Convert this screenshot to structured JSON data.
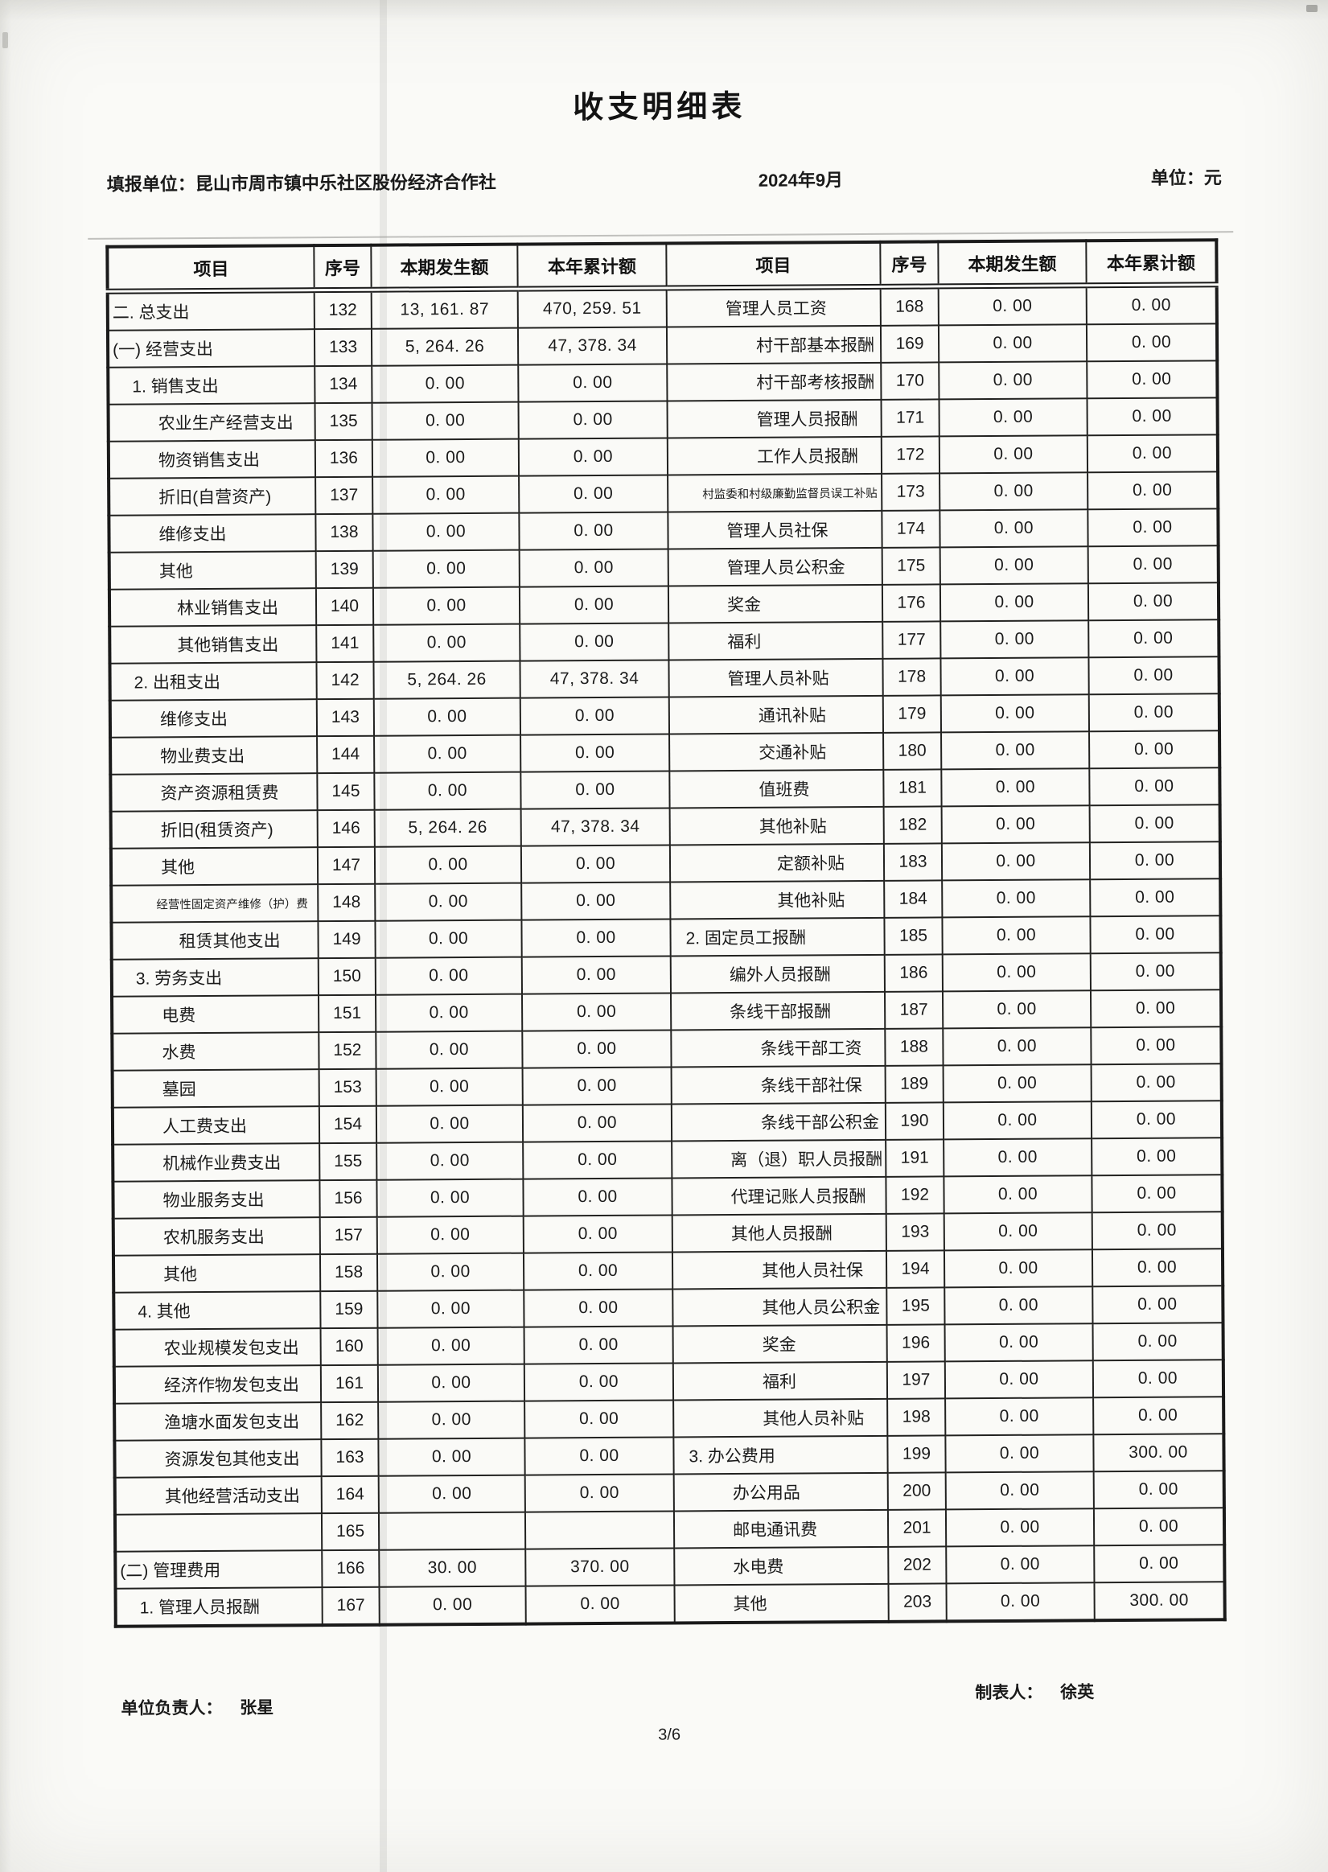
{
  "title": "收支明细表",
  "meta": {
    "unit_label": "填报单位：昆山市周市镇中乐社区股份经济合作社",
    "period": "2024年9月",
    "currency_label": "单位：元"
  },
  "table": {
    "headers": [
      "项目",
      "序号",
      "本期发生额",
      "本年累计额"
    ],
    "left_rows": [
      {
        "item": "二. 总支出",
        "ind": 0,
        "no": "132",
        "cur": "13, 161. 87",
        "ytd": "470, 259. 51"
      },
      {
        "item": "(一) 经营支出",
        "ind": 0,
        "no": "133",
        "cur": "5, 264. 26",
        "ytd": "47, 378. 34"
      },
      {
        "item": "1. 销售支出",
        "ind": 1,
        "no": "134",
        "cur": "0. 00",
        "ytd": "0. 00"
      },
      {
        "item": "农业生产经营支出",
        "ind": 2,
        "no": "135",
        "cur": "0. 00",
        "ytd": "0. 00"
      },
      {
        "item": "物资销售支出",
        "ind": 2,
        "no": "136",
        "cur": "0. 00",
        "ytd": "0. 00"
      },
      {
        "item": "折旧(自营资产)",
        "ind": 2,
        "no": "137",
        "cur": "0. 00",
        "ytd": "0. 00"
      },
      {
        "item": "维修支出",
        "ind": 2,
        "no": "138",
        "cur": "0. 00",
        "ytd": "0. 00"
      },
      {
        "item": "其他",
        "ind": 2,
        "no": "139",
        "cur": "0. 00",
        "ytd": "0. 00"
      },
      {
        "item": "林业销售支出",
        "ind": 3,
        "no": "140",
        "cur": "0. 00",
        "ytd": "0. 00"
      },
      {
        "item": "其他销售支出",
        "ind": 3,
        "no": "141",
        "cur": "0. 00",
        "ytd": "0. 00"
      },
      {
        "item": "2. 出租支出",
        "ind": 1,
        "no": "142",
        "cur": "5, 264. 26",
        "ytd": "47, 378. 34"
      },
      {
        "item": "维修支出",
        "ind": 2,
        "no": "143",
        "cur": "0. 00",
        "ytd": "0. 00"
      },
      {
        "item": "物业费支出",
        "ind": 2,
        "no": "144",
        "cur": "0. 00",
        "ytd": "0. 00"
      },
      {
        "item": "资产资源租赁费",
        "ind": 2,
        "no": "145",
        "cur": "0. 00",
        "ytd": "0. 00"
      },
      {
        "item": "折旧(租赁资产)",
        "ind": 2,
        "no": "146",
        "cur": "5, 264. 26",
        "ytd": "47, 378. 34"
      },
      {
        "item": "其他",
        "ind": 2,
        "no": "147",
        "cur": "0. 00",
        "ytd": "0. 00"
      },
      {
        "item": "经营性固定资产维修（护）费",
        "ind": 2,
        "no": "148",
        "cur": "0. 00",
        "ytd": "0. 00",
        "sm": true
      },
      {
        "item": "租赁其他支出",
        "ind": 3,
        "no": "149",
        "cur": "0. 00",
        "ytd": "0. 00"
      },
      {
        "item": "3. 劳务支出",
        "ind": 1,
        "no": "150",
        "cur": "0. 00",
        "ytd": "0. 00"
      },
      {
        "item": "电费",
        "ind": 2,
        "no": "151",
        "cur": "0. 00",
        "ytd": "0. 00"
      },
      {
        "item": "水费",
        "ind": 2,
        "no": "152",
        "cur": "0. 00",
        "ytd": "0. 00"
      },
      {
        "item": "墓园",
        "ind": 2,
        "no": "153",
        "cur": "0. 00",
        "ytd": "0. 00"
      },
      {
        "item": "人工费支出",
        "ind": 2,
        "no": "154",
        "cur": "0. 00",
        "ytd": "0. 00"
      },
      {
        "item": "机械作业费支出",
        "ind": 2,
        "no": "155",
        "cur": "0. 00",
        "ytd": "0. 00"
      },
      {
        "item": "物业服务支出",
        "ind": 2,
        "no": "156",
        "cur": "0. 00",
        "ytd": "0. 00"
      },
      {
        "item": "农机服务支出",
        "ind": 2,
        "no": "157",
        "cur": "0. 00",
        "ytd": "0. 00"
      },
      {
        "item": "其他",
        "ind": 2,
        "no": "158",
        "cur": "0. 00",
        "ytd": "0. 00"
      },
      {
        "item": "4. 其他",
        "ind": 1,
        "no": "159",
        "cur": "0. 00",
        "ytd": "0. 00"
      },
      {
        "item": "农业规模发包支出",
        "ind": 2,
        "no": "160",
        "cur": "0. 00",
        "ytd": "0. 00"
      },
      {
        "item": "经济作物发包支出",
        "ind": 2,
        "no": "161",
        "cur": "0. 00",
        "ytd": "0. 00"
      },
      {
        "item": "渔塘水面发包支出",
        "ind": 2,
        "no": "162",
        "cur": "0. 00",
        "ytd": "0. 00"
      },
      {
        "item": "资源发包其他支出",
        "ind": 2,
        "no": "163",
        "cur": "0. 00",
        "ytd": "0. 00"
      },
      {
        "item": "其他经营活动支出",
        "ind": 2,
        "no": "164",
        "cur": "0. 00",
        "ytd": "0. 00"
      },
      {
        "item": "",
        "ind": 0,
        "no": "165",
        "cur": "",
        "ytd": ""
      },
      {
        "item": "(二) 管理费用",
        "ind": 0,
        "no": "166",
        "cur": "30. 00",
        "ytd": "370. 00"
      },
      {
        "item": "1. 管理人员报酬",
        "ind": 1,
        "no": "167",
        "cur": "0. 00",
        "ytd": "0. 00"
      }
    ],
    "right_rows": [
      {
        "item": "管理人员工资",
        "ind": 1,
        "no": "168",
        "cur": "0. 00",
        "ytd": "0. 00"
      },
      {
        "item": "村干部基本报酬",
        "ind": 2,
        "no": "169",
        "cur": "0. 00",
        "ytd": "0. 00"
      },
      {
        "item": "村干部考核报酬",
        "ind": 2,
        "no": "170",
        "cur": "0. 00",
        "ytd": "0. 00"
      },
      {
        "item": "管理人员报酬",
        "ind": 2,
        "no": "171",
        "cur": "0. 00",
        "ytd": "0. 00"
      },
      {
        "item": "工作人员报酬",
        "ind": 2,
        "no": "172",
        "cur": "0. 00",
        "ytd": "0. 00"
      },
      {
        "item": "村监委和村级廉勤监督员误工补贴",
        "ind": 1,
        "no": "173",
        "cur": "0. 00",
        "ytd": "0. 00",
        "sm": true
      },
      {
        "item": "管理人员社保",
        "ind": 1,
        "no": "174",
        "cur": "0. 00",
        "ytd": "0. 00"
      },
      {
        "item": "管理人员公积金",
        "ind": 1,
        "no": "175",
        "cur": "0. 00",
        "ytd": "0. 00"
      },
      {
        "item": "奖金",
        "ind": 1,
        "no": "176",
        "cur": "0. 00",
        "ytd": "0. 00"
      },
      {
        "item": "福利",
        "ind": 1,
        "no": "177",
        "cur": "0. 00",
        "ytd": "0. 00"
      },
      {
        "item": "管理人员补贴",
        "ind": 1,
        "no": "178",
        "cur": "0. 00",
        "ytd": "0. 00"
      },
      {
        "item": "通讯补贴",
        "ind": 2,
        "no": "179",
        "cur": "0. 00",
        "ytd": "0. 00"
      },
      {
        "item": "交通补贴",
        "ind": 2,
        "no": "180",
        "cur": "0. 00",
        "ytd": "0. 00"
      },
      {
        "item": "值班费",
        "ind": 2,
        "no": "181",
        "cur": "0. 00",
        "ytd": "0. 00"
      },
      {
        "item": "其他补贴",
        "ind": 2,
        "no": "182",
        "cur": "0. 00",
        "ytd": "0. 00"
      },
      {
        "item": "定额补贴",
        "ind": 3,
        "no": "183",
        "cur": "0. 00",
        "ytd": "0. 00"
      },
      {
        "item": "其他补贴",
        "ind": 3,
        "no": "184",
        "cur": "0. 00",
        "ytd": "0. 00"
      },
      {
        "item": "2. 固定员工报酬",
        "ind": 0,
        "no": "185",
        "cur": "0. 00",
        "ytd": "0. 00"
      },
      {
        "item": "编外人员报酬",
        "ind": 1,
        "no": "186",
        "cur": "0. 00",
        "ytd": "0. 00"
      },
      {
        "item": "条线干部报酬",
        "ind": 1,
        "no": "187",
        "cur": "0. 00",
        "ytd": "0. 00"
      },
      {
        "item": "条线干部工资",
        "ind": 2,
        "no": "188",
        "cur": "0. 00",
        "ytd": "0. 00"
      },
      {
        "item": "条线干部社保",
        "ind": 2,
        "no": "189",
        "cur": "0. 00",
        "ytd": "0. 00"
      },
      {
        "item": "条线干部公积金",
        "ind": 2,
        "no": "190",
        "cur": "0. 00",
        "ytd": "0. 00"
      },
      {
        "item": "离（退）职人员报酬",
        "ind": 1,
        "no": "191",
        "cur": "0. 00",
        "ytd": "0. 00"
      },
      {
        "item": "代理记账人员报酬",
        "ind": 1,
        "no": "192",
        "cur": "0. 00",
        "ytd": "0. 00"
      },
      {
        "item": "其他人员报酬",
        "ind": 1,
        "no": "193",
        "cur": "0. 00",
        "ytd": "0. 00"
      },
      {
        "item": "其他人员社保",
        "ind": 2,
        "no": "194",
        "cur": "0. 00",
        "ytd": "0. 00"
      },
      {
        "item": "其他人员公积金",
        "ind": 2,
        "no": "195",
        "cur": "0. 00",
        "ytd": "0. 00"
      },
      {
        "item": "奖金",
        "ind": 2,
        "no": "196",
        "cur": "0. 00",
        "ytd": "0. 00"
      },
      {
        "item": "福利",
        "ind": 2,
        "no": "197",
        "cur": "0. 00",
        "ytd": "0. 00"
      },
      {
        "item": "其他人员补贴",
        "ind": 2,
        "no": "198",
        "cur": "0. 00",
        "ytd": "0. 00"
      },
      {
        "item": "3. 办公费用",
        "ind": 0,
        "no": "199",
        "cur": "0. 00",
        "ytd": "300. 00"
      },
      {
        "item": "办公用品",
        "ind": 1,
        "no": "200",
        "cur": "0. 00",
        "ytd": "0. 00"
      },
      {
        "item": "邮电通讯费",
        "ind": 1,
        "no": "201",
        "cur": "0. 00",
        "ytd": "0. 00"
      },
      {
        "item": "水电费",
        "ind": 1,
        "no": "202",
        "cur": "0. 00",
        "ytd": "0. 00"
      },
      {
        "item": "其他",
        "ind": 1,
        "no": "203",
        "cur": "0. 00",
        "ytd": "300. 00"
      }
    ]
  },
  "footer": {
    "responsible_label": "单位负责人：",
    "responsible_name": "张星",
    "preparer_label": "制表人：",
    "preparer_name": "徐英",
    "page_number": "3/6"
  },
  "colors": {
    "ink": "#1a1a1a",
    "paper": "#fafaf7"
  }
}
